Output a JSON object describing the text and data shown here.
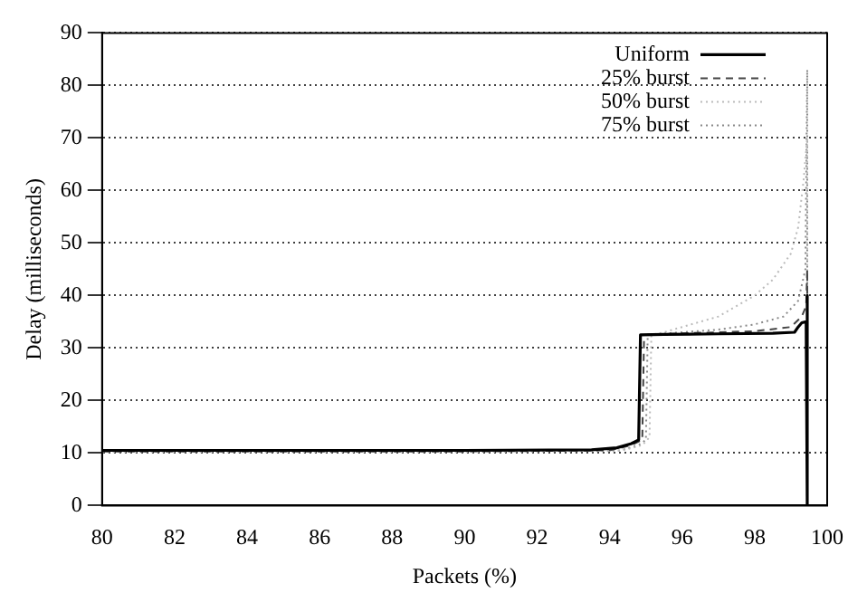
{
  "chart_data": {
    "type": "line",
    "xlabel": "Packets (%)",
    "ylabel": "Delay (milliseconds)",
    "xlim": [
      80,
      100
    ],
    "xticks": [
      80,
      82,
      84,
      86,
      88,
      90,
      92,
      94,
      96,
      98,
      100
    ],
    "ylim": [
      0,
      90
    ],
    "yticks": [
      0,
      10,
      20,
      30,
      40,
      50,
      60,
      70,
      80,
      90
    ],
    "grid": "y",
    "legend": "top right",
    "marker": "none",
    "series": [
      {
        "name": "Uniform",
        "color": "#000000",
        "line_style": "solid",
        "x": [
          80,
          90,
          93.5,
          94.2,
          94.6,
          94.8,
          94.85,
          95.5,
          97,
          98.5,
          99.1,
          99.2,
          99.3,
          99.42,
          99.45,
          99.45
        ],
        "values": [
          10.5,
          10.5,
          10.6,
          11,
          11.8,
          12.5,
          32.5,
          32.6,
          32.7,
          32.8,
          33,
          34,
          34.8,
          35,
          40,
          0
        ]
      },
      {
        "name": "25% burst",
        "color": "#444444",
        "line_style": "dashed",
        "x": [
          80,
          90,
          94,
          94.6,
          94.9,
          94.95,
          96,
          98,
          99,
          99.3,
          99.42,
          99.45,
          99.45
        ],
        "values": [
          10.3,
          10.3,
          10.5,
          11.5,
          12.5,
          32.5,
          32.8,
          33.2,
          34,
          36,
          38,
          45,
          0
        ]
      },
      {
        "name": "50% burst",
        "color": "#bbbbbb",
        "line_style": "dotted",
        "x": [
          80,
          90,
          94.3,
          94.9,
          95.1,
          95.15,
          95.5,
          96,
          97,
          98,
          98.5,
          99,
          99.2,
          99.35,
          99.45,
          99.45
        ],
        "values": [
          10.2,
          10.2,
          10.4,
          11.5,
          13,
          32.5,
          33,
          34,
          36,
          40,
          43,
          48,
          53,
          62,
          70,
          0
        ]
      },
      {
        "name": "75% burst",
        "color": "#888888",
        "line_style": "dotted",
        "x": [
          80,
          90,
          94.3,
          94.8,
          95,
          95.05,
          96,
          97,
          98,
          98.8,
          99.2,
          99.4,
          99.45,
          99.45
        ],
        "values": [
          10.3,
          10.3,
          10.5,
          11.5,
          12.5,
          32.5,
          33,
          33.5,
          34.5,
          36,
          39,
          45,
          83,
          0
        ]
      }
    ]
  }
}
